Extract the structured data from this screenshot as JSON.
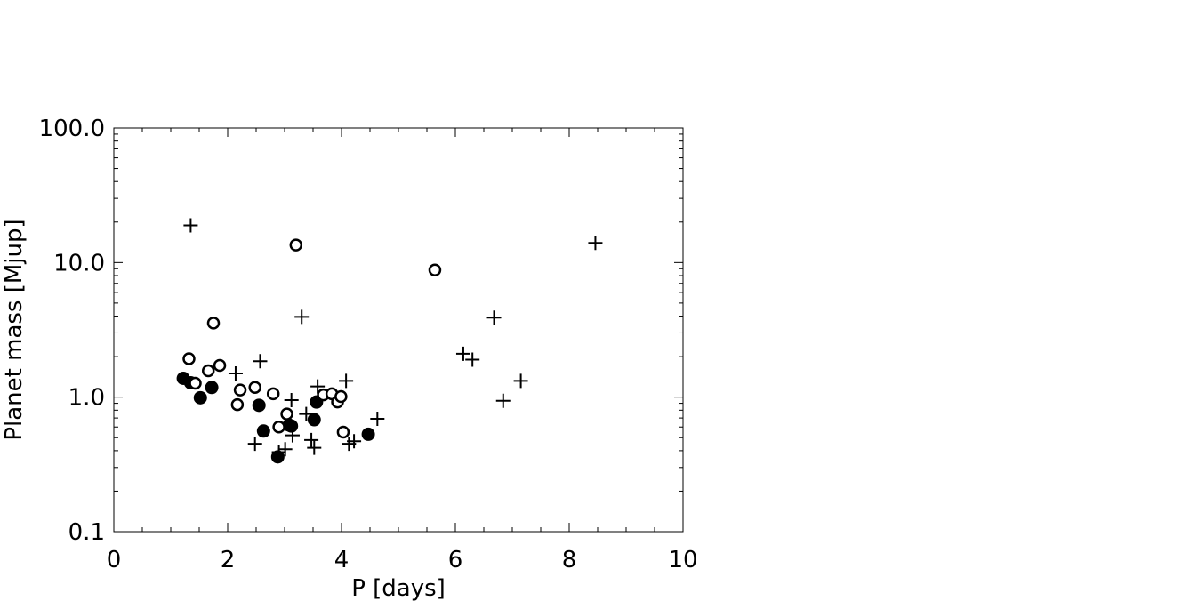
{
  "chart_data": {
    "type": "scatter",
    "xlabel": "P [days]",
    "ylabel": "Planet mass [Mjup]",
    "xlim": [
      0,
      10
    ],
    "ylim": [
      0.1,
      100
    ],
    "yscale": "log",
    "x_ticks": [
      0,
      2,
      4,
      6,
      8,
      10
    ],
    "x_tick_labels": [
      "0",
      "2",
      "4",
      "6",
      "8",
      "10"
    ],
    "y_ticks": [
      0.1,
      1,
      10,
      100
    ],
    "y_tick_labels": [
      "0.1",
      "1.0",
      "10.0",
      "100.0"
    ],
    "grid": false,
    "series": [
      {
        "marker": "filled-circle",
        "points": [
          [
            1.22,
            1.38
          ],
          [
            1.35,
            1.28
          ],
          [
            1.52,
            0.99
          ],
          [
            1.72,
            1.18
          ],
          [
            2.55,
            0.87
          ],
          [
            2.63,
            0.56
          ],
          [
            2.88,
            0.36
          ],
          [
            3.08,
            0.62
          ],
          [
            3.12,
            0.61
          ],
          [
            3.52,
            0.68
          ],
          [
            3.56,
            0.92
          ],
          [
            4.47,
            0.53
          ]
        ]
      },
      {
        "marker": "open-circle",
        "points": [
          [
            1.32,
            1.93
          ],
          [
            1.43,
            1.27
          ],
          [
            1.66,
            1.57
          ],
          [
            1.75,
            3.55
          ],
          [
            1.86,
            1.72
          ],
          [
            2.17,
            0.88
          ],
          [
            2.22,
            1.13
          ],
          [
            2.48,
            1.18
          ],
          [
            2.8,
            1.06
          ],
          [
            2.9,
            0.6
          ],
          [
            3.04,
            0.75
          ],
          [
            3.2,
            13.5
          ],
          [
            3.68,
            1.04
          ],
          [
            3.83,
            1.06
          ],
          [
            3.93,
            0.92
          ],
          [
            3.99,
            1.01
          ],
          [
            4.03,
            0.55
          ],
          [
            5.64,
            8.8
          ]
        ]
      },
      {
        "marker": "plus",
        "points": [
          [
            1.35,
            18.9
          ],
          [
            2.14,
            1.5
          ],
          [
            2.48,
            0.45
          ],
          [
            2.57,
            1.85
          ],
          [
            2.9,
            0.39
          ],
          [
            3.01,
            0.41
          ],
          [
            3.12,
            0.95
          ],
          [
            3.14,
            0.52
          ],
          [
            3.3,
            3.95
          ],
          [
            3.38,
            0.75
          ],
          [
            3.47,
            0.48
          ],
          [
            3.52,
            0.42
          ],
          [
            3.58,
            1.2
          ],
          [
            4.08,
            1.32
          ],
          [
            4.13,
            0.45
          ],
          [
            4.22,
            0.47
          ],
          [
            4.63,
            0.69
          ],
          [
            6.14,
            2.1
          ],
          [
            6.3,
            1.9
          ],
          [
            6.68,
            3.9
          ],
          [
            6.84,
            0.94
          ],
          [
            7.15,
            1.32
          ],
          [
            8.46,
            14.0
          ]
        ]
      }
    ]
  }
}
